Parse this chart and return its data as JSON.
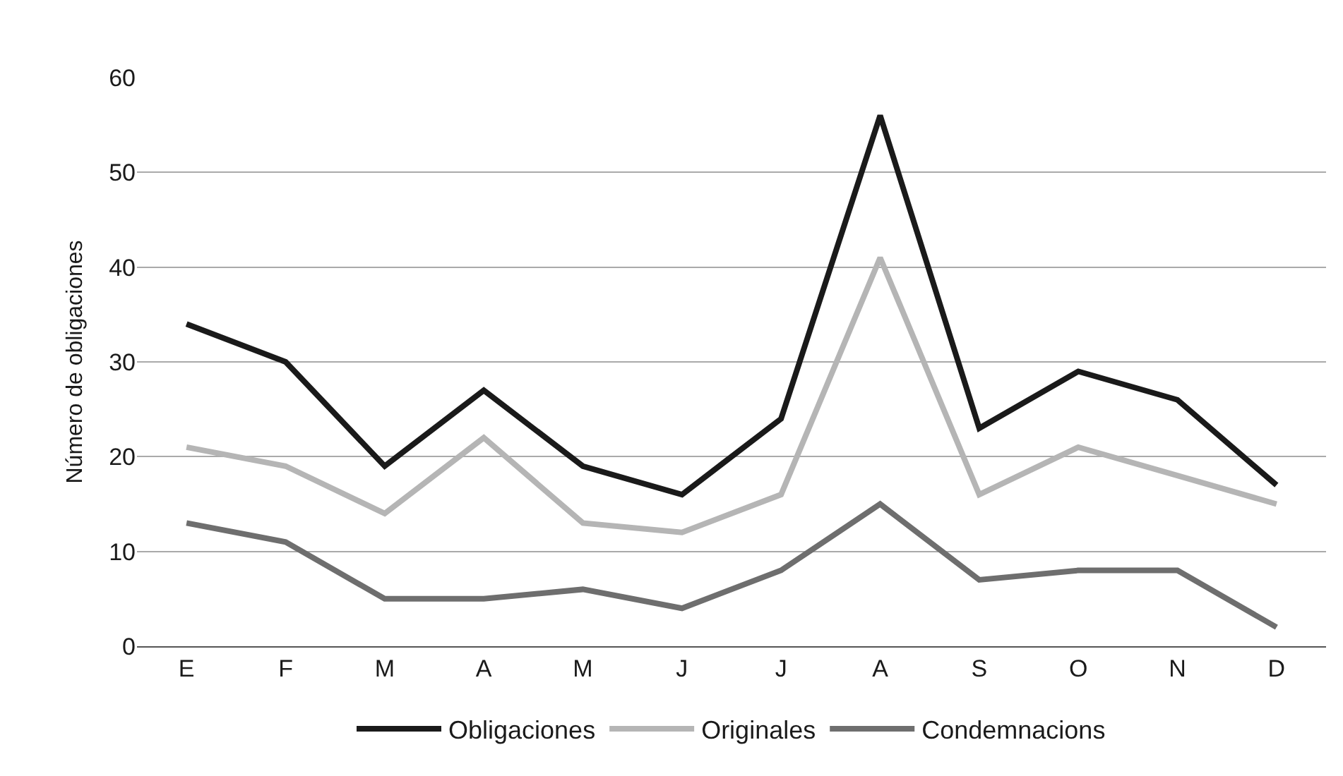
{
  "chart_data": {
    "type": "line",
    "ylabel": "Número de obligaciones",
    "categories": [
      "E",
      "F",
      "M",
      "A",
      "M",
      "J",
      "J",
      "A",
      "S",
      "O",
      "N",
      "D"
    ],
    "series": [
      {
        "name": "Obligaciones",
        "color": "#1a1a1a",
        "values": [
          34,
          30,
          19,
          27,
          19,
          16,
          24,
          56,
          23,
          29,
          26,
          17
        ]
      },
      {
        "name": "Originales",
        "color": "#b5b5b5",
        "values": [
          21,
          19,
          14,
          22,
          13,
          12,
          16,
          41,
          16,
          21,
          18,
          15
        ]
      },
      {
        "name": "Condemnacions",
        "color": "#6e6e6e",
        "values": [
          13,
          11,
          5,
          5,
          6,
          4,
          8,
          15,
          7,
          8,
          8,
          2
        ]
      }
    ],
    "ylim": [
      0,
      60
    ],
    "yticks": [
      0,
      10,
      20,
      30,
      40,
      50,
      60
    ],
    "grid": "y",
    "legend": "bottom",
    "marker": "none",
    "line_style": "solid"
  }
}
